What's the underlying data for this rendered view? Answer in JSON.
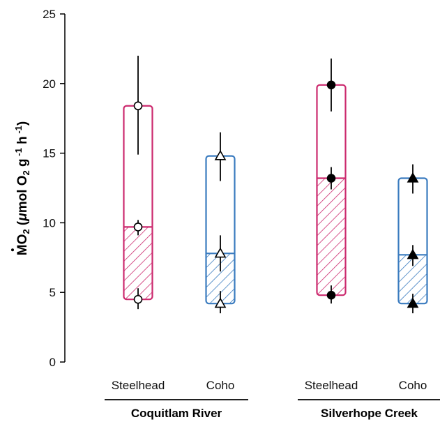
{
  "chart_data": {
    "type": "bar",
    "ylabel": "ṀO2 (μmol O2 g-1 h-1)",
    "ylim": [
      0,
      25
    ],
    "yticks": [
      0,
      5,
      10,
      15,
      20,
      25
    ],
    "grid": false,
    "groups": [
      {
        "name": "Coquitlam River",
        "items": [
          {
            "category": "Steelhead",
            "color": "#cc2a6e",
            "marker": "open-circle",
            "floor": {
              "value": 4.5,
              "err_low": 3.8,
              "err_high": 5.3
            },
            "routine": {
              "value": 9.7,
              "err_low": 9.1,
              "err_high": 10.2
            },
            "max": {
              "value": 18.4,
              "err_low": 14.9,
              "err_high": 22.0
            }
          },
          {
            "category": "Coho",
            "color": "#3a7bbf",
            "marker": "open-triangle",
            "floor": {
              "value": 4.2,
              "err_low": 3.5,
              "err_high": 5.1
            },
            "routine": {
              "value": 7.8,
              "err_low": 6.5,
              "err_high": 9.1
            },
            "max": {
              "value": 14.8,
              "err_low": 13.0,
              "err_high": 16.5
            }
          }
        ]
      },
      {
        "name": "Silverhope Creek",
        "items": [
          {
            "category": "Steelhead",
            "color": "#cc2a6e",
            "marker": "filled-circle",
            "floor": {
              "value": 4.8,
              "err_low": 4.2,
              "err_high": 5.5
            },
            "routine": {
              "value": 13.2,
              "err_low": 12.4,
              "err_high": 14.0
            },
            "max": {
              "value": 19.9,
              "err_low": 18.0,
              "err_high": 21.8
            }
          },
          {
            "category": "Coho",
            "color": "#3a7bbf",
            "marker": "filled-triangle",
            "floor": {
              "value": 4.2,
              "err_low": 3.5,
              "err_high": 4.9
            },
            "routine": {
              "value": 7.7,
              "err_low": 6.9,
              "err_high": 8.4
            },
            "max": {
              "value": 13.2,
              "err_low": 12.1,
              "err_high": 14.2
            }
          }
        ]
      }
    ]
  }
}
